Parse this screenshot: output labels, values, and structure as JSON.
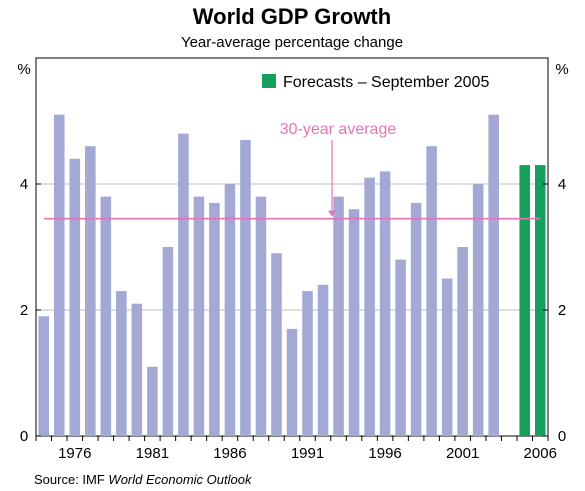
{
  "chart_data": {
    "type": "bar",
    "title": "World GDP Growth",
    "subtitle": "Year-average percentage change",
    "ylabel_left": "%",
    "ylabel_right": "%",
    "ylim": [
      0,
      6
    ],
    "yticks": [
      0,
      2,
      4
    ],
    "xtick_labels": [
      "1976",
      "1981",
      "1986",
      "1991",
      "1996",
      "2001",
      "2006"
    ],
    "categories": [
      1974,
      1975,
      1976,
      1977,
      1978,
      1979,
      1980,
      1981,
      1982,
      1983,
      1984,
      1985,
      1986,
      1987,
      1988,
      1989,
      1990,
      1991,
      1992,
      1993,
      1994,
      1995,
      1996,
      1997,
      1998,
      1999,
      2000,
      2001,
      2002,
      2003,
      2004,
      2005,
      2006
    ],
    "series": [
      {
        "name": "",
        "color": "#a3a8d4",
        "values": [
          1.9,
          5.1,
          4.4,
          4.6,
          3.8,
          2.3,
          2.1,
          1.1,
          3.0,
          4.8,
          3.8,
          3.7,
          4.0,
          4.7,
          3.8,
          2.9,
          1.7,
          2.3,
          2.4,
          3.8,
          3.6,
          4.1,
          4.2,
          2.8,
          3.7,
          4.6,
          2.5,
          3.0,
          4.0,
          5.1,
          null,
          null,
          null
        ]
      },
      {
        "name": "Forecasts – September 2005",
        "color": "#16a05d",
        "values": [
          null,
          null,
          null,
          null,
          null,
          null,
          null,
          null,
          null,
          null,
          null,
          null,
          null,
          null,
          null,
          null,
          null,
          null,
          null,
          null,
          null,
          null,
          null,
          null,
          null,
          null,
          null,
          null,
          null,
          null,
          null,
          4.3,
          4.3
        ]
      }
    ],
    "average_line": {
      "label": "30-year average",
      "value": 3.45,
      "color": "#e673b8"
    },
    "legend": {
      "placement": "top-right",
      "entries": [
        {
          "label": "Forecasts – September 2005",
          "color": "#16a05d"
        }
      ]
    },
    "grid": true,
    "source_prefix": "Source: IMF ",
    "source_title": "World Economic Outlook"
  }
}
